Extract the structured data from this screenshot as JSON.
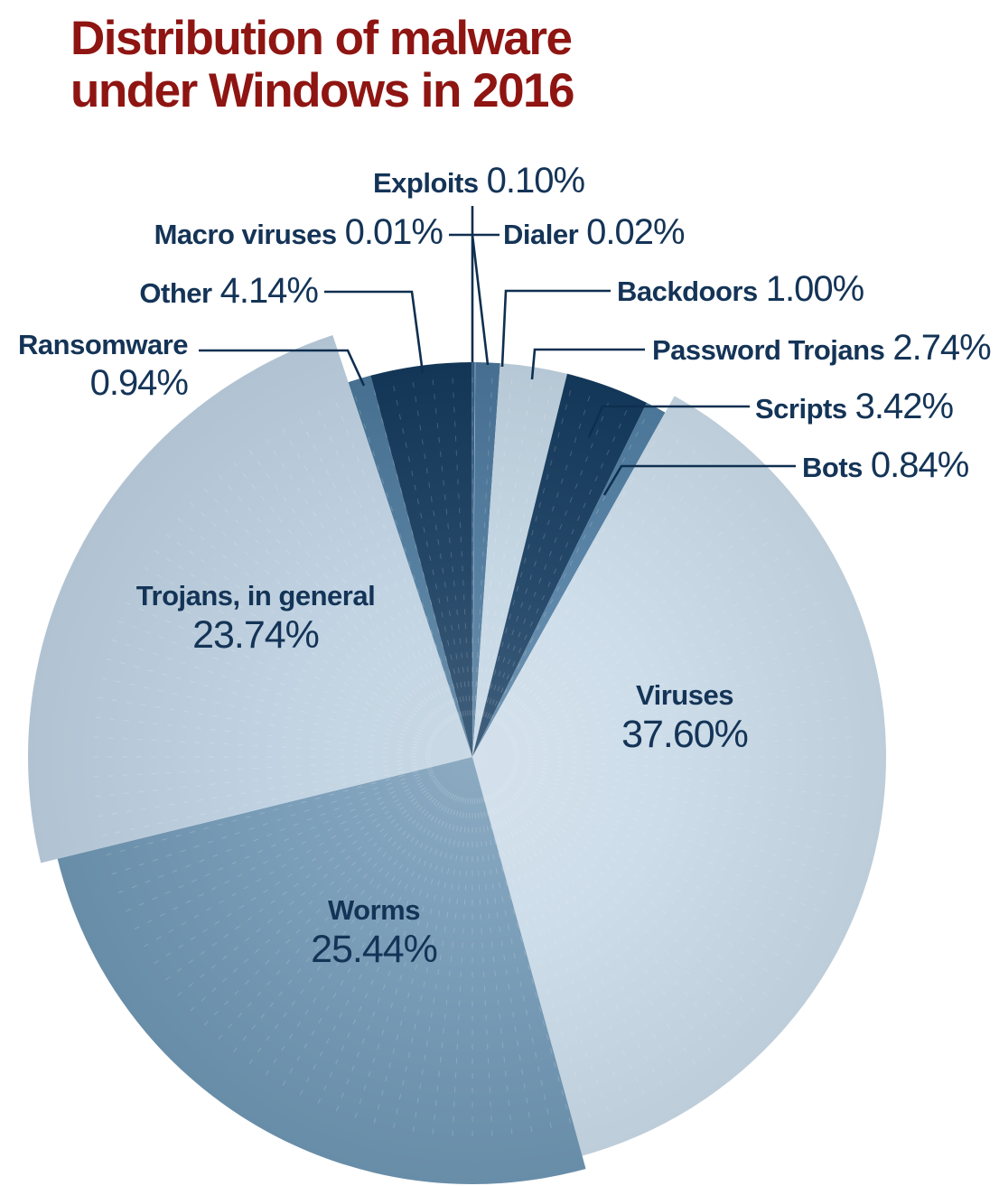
{
  "title": {
    "line1": "Distribution of malware",
    "line2": "under Windows in 2016"
  },
  "colors": {
    "title_text": "#8e1512",
    "label_text": "#143457",
    "leader_line": "#0f2f50",
    "background": "#ffffff"
  },
  "chart_data": {
    "type": "pie",
    "title": "Distribution of malware under Windows in 2016",
    "unit": "%",
    "start_angle_deg": 0,
    "direction": "clockwise",
    "legend": "none (direct callout and in-slice labels)",
    "slices": [
      {
        "label": "Exploits",
        "value": 0.1,
        "display": "0.10%",
        "color": "#33608a"
      },
      {
        "label": "Dialer",
        "value": 0.02,
        "display": "0.02%",
        "color": "#9dbcd2"
      },
      {
        "label": "Backdoors",
        "value": 1.0,
        "display": "1.00%",
        "color": "#4a7599"
      },
      {
        "label": "Password Trojans",
        "value": 2.74,
        "display": "2.74%",
        "color": "#c2d5e3"
      },
      {
        "label": "Scripts",
        "value": 3.42,
        "display": "3.42%",
        "color": "#143a5e"
      },
      {
        "label": "Bots",
        "value": 0.84,
        "display": "0.84%",
        "color": "#507da1"
      },
      {
        "label": "Viruses",
        "value": 37.6,
        "display": "37.60%",
        "color": "#c9dae7"
      },
      {
        "label": "Worms",
        "value": 25.44,
        "display": "25.44%",
        "color": "#6f96b3"
      },
      {
        "label": "Trojans, in general",
        "value": 23.74,
        "display": "23.74%",
        "color": "#bccfdf"
      },
      {
        "label": "Ransomware",
        "value": 0.94,
        "display": "0.94%",
        "color": "#4a7699"
      },
      {
        "label": "Other",
        "value": 4.14,
        "display": "4.14%",
        "color": "#14395c"
      },
      {
        "label": "Macro viruses",
        "value": 0.01,
        "display": "0.01%",
        "color": "#6f96b3"
      }
    ]
  }
}
